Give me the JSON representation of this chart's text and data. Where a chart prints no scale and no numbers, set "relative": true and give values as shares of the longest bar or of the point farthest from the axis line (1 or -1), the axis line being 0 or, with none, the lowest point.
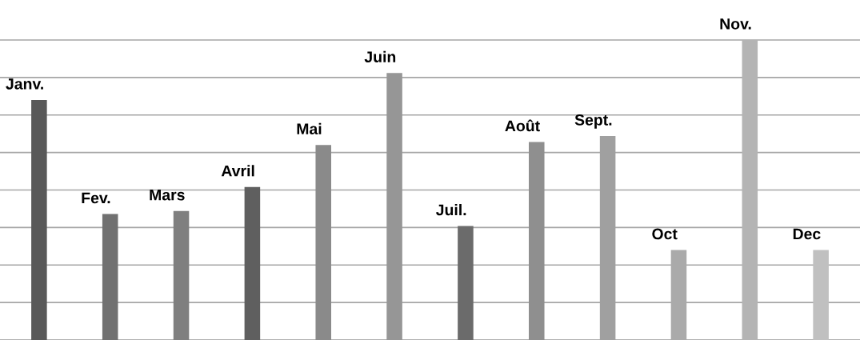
{
  "chart_data": {
    "type": "bar",
    "relative": true,
    "grid": "y",
    "categories": [
      "Janv.",
      "Fev.",
      "Mars",
      "Avril",
      "Mai",
      "Juin",
      "Juil.",
      "Août",
      "Sept.",
      "Oct",
      "Nov.",
      "Dec"
    ],
    "values": [
      0.8,
      0.42,
      0.43,
      0.51,
      0.65,
      0.89,
      0.38,
      0.66,
      0.68,
      0.3,
      1,
      0.3
    ],
    "colors": [
      "#595959",
      "#717171",
      "#7f7f7f",
      "#5f5f5f",
      "#8a8a8a",
      "#969696",
      "#6b6b6b",
      "#8f8f8f",
      "#a0a0a0",
      "#aaaaaa",
      "#b4b4b4",
      "#c0c0c0"
    ]
  }
}
